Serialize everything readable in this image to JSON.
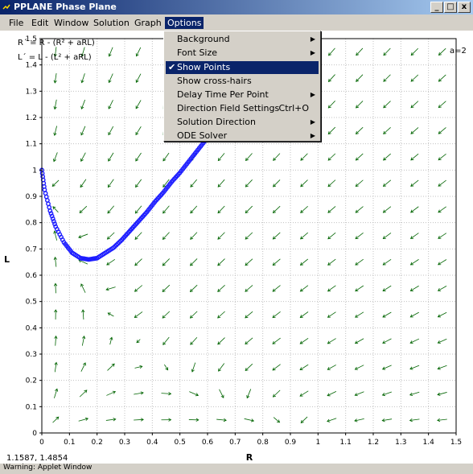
{
  "window": {
    "title": "PPLANE Phase Plane",
    "minimize_label": "_",
    "maximize_label": "□",
    "close_label": "x"
  },
  "menubar": {
    "items": [
      {
        "label": "File"
      },
      {
        "label": "Edit"
      },
      {
        "label": "Window"
      },
      {
        "label": "Solution"
      },
      {
        "label": "Graph"
      },
      {
        "label": "Options"
      }
    ]
  },
  "options_menu": {
    "items": [
      {
        "label": "Background",
        "submenu": true
      },
      {
        "label": "Font Size",
        "submenu": true
      },
      {
        "label": "Show Points",
        "checked": true,
        "selected": true
      },
      {
        "label": "Show cross-hairs"
      },
      {
        "label": "Delay Time Per Point",
        "submenu": true
      },
      {
        "label": "Direction Field Settings",
        "shortcut": "Ctrl+O"
      },
      {
        "label": "Solution Direction",
        "submenu": true
      },
      {
        "label": "ODE Solver",
        "submenu": true
      }
    ],
    "check_glyph": "✔",
    "arrow_glyph": "▶"
  },
  "plot": {
    "equation_r": "R´ = R - (R² + aRL)",
    "equation_l": "L´ = L - (L² + aRL)",
    "parameter": "a=2",
    "xlabel": "R",
    "ylabel": "L",
    "cursor_readout": "1.1587, 1.4854",
    "status": "Warning: Applet Window",
    "colors": {
      "field": "#006400",
      "solution": "#1c1cff",
      "grid": "#c0c0c0"
    }
  },
  "chart_data": {
    "type": "scatter",
    "title": "",
    "xlabel": "R",
    "ylabel": "L",
    "xlim": [
      0,
      1.5
    ],
    "ylim": [
      0,
      1.5
    ],
    "xticks": [
      "0",
      "0.1",
      "0.2",
      "0.3",
      "0.4",
      "0.5",
      "0.6",
      "0.7",
      "0.8",
      "0.9",
      "1",
      "1.1",
      "1.2",
      "1.3",
      "1.4",
      "1.5"
    ],
    "yticks": [
      "0",
      "0.1",
      "0.2",
      "0.3",
      "0.4",
      "0.5",
      "0.6",
      "0.7",
      "0.8",
      "0.9",
      "1",
      "1.1",
      "1.2",
      "1.3",
      "1.4",
      "1.5"
    ],
    "grid": true,
    "series": [
      {
        "points": [
          [
            0.0,
            1.0
          ],
          [
            0.01,
            0.925
          ],
          [
            0.03,
            0.845
          ],
          [
            0.05,
            0.785
          ],
          [
            0.08,
            0.725
          ],
          [
            0.11,
            0.685
          ],
          [
            0.14,
            0.665
          ],
          [
            0.17,
            0.66
          ],
          [
            0.2,
            0.665
          ],
          [
            0.23,
            0.685
          ],
          [
            0.26,
            0.705
          ],
          [
            0.29,
            0.735
          ],
          [
            0.32,
            0.77
          ],
          [
            0.35,
            0.805
          ],
          [
            0.38,
            0.84
          ],
          [
            0.41,
            0.88
          ],
          [
            0.44,
            0.915
          ],
          [
            0.47,
            0.955
          ],
          [
            0.5,
            0.99
          ],
          [
            0.53,
            1.03
          ],
          [
            0.56,
            1.07
          ],
          [
            0.59,
            1.11
          ],
          [
            0.62,
            1.15
          ],
          [
            0.64,
            1.185
          ],
          [
            0.66,
            1.215
          ]
        ]
      }
    ],
    "direction_field": {
      "model": "R' = R - (R^2 + aRL), L' = L - (L^2 + aRL)",
      "a": 2,
      "grid_step": 0.1
    }
  }
}
